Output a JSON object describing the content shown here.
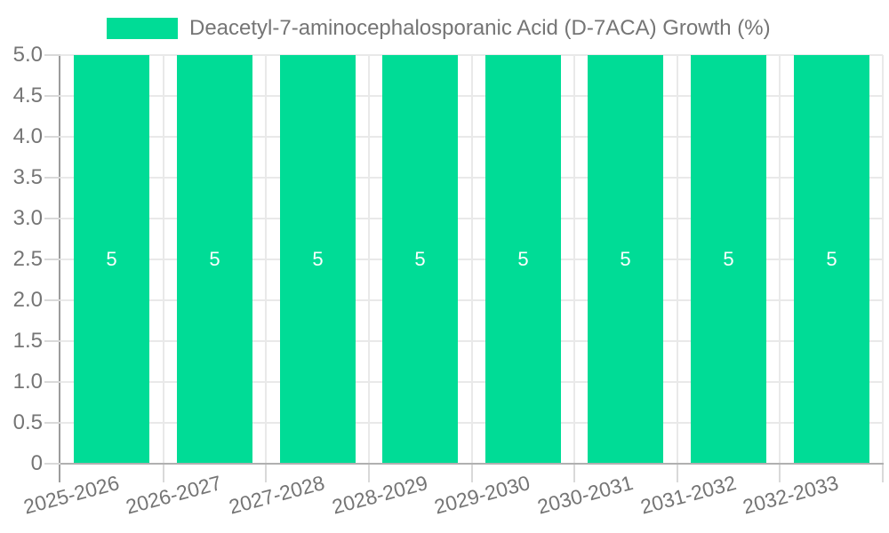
{
  "chart_data": {
    "type": "bar",
    "title": "Deacetyl-7-aminocephalosporanic Acid (D-7ACA) Growth (%)",
    "legend_entries": [
      "Deacetyl-7-aminocephalosporanic Acid (D-7ACA) Growth (%)"
    ],
    "legend_position": "top",
    "categories": [
      "2025-2026",
      "2026-2027",
      "2027-2028",
      "2028-2029",
      "2029-2030",
      "2030-2031",
      "2031-2032",
      "2032-2033"
    ],
    "values": [
      5,
      5,
      5,
      5,
      5,
      5,
      5,
      5
    ],
    "bar_labels": [
      "5",
      "5",
      "5",
      "5",
      "5",
      "5",
      "5",
      "5"
    ],
    "xlabel": "",
    "ylabel": "",
    "ylim": [
      0,
      5
    ],
    "ytick_step": 0.5,
    "ytick_labels": [
      "5.0",
      "4.5",
      "4.0",
      "3.5",
      "3.0",
      "2.5",
      "2.0",
      "1.5",
      "1.0",
      "0.5",
      "0"
    ],
    "grid": true,
    "colors": {
      "bar": "#00dc96",
      "bar_label": "#ffffff",
      "axis_text": "#757575",
      "y_axis_line": "#9c9c9c",
      "x_axis_line": "#b0b0b0",
      "grid_line": "#e9e9e9",
      "tick": "#d9d9d9",
      "background": "#ffffff"
    }
  }
}
